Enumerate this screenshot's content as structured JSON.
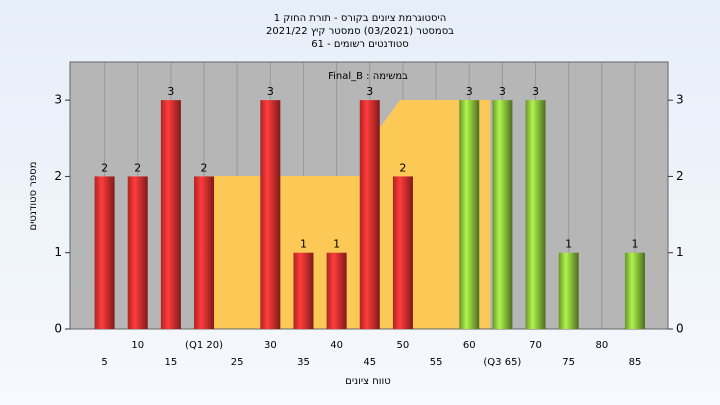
{
  "chart_data": {
    "type": "bar",
    "title": "היסטוגרמת ציונים בקורס - תורת החוק 1",
    "subtitle_lines": [
      "בסמסטר (03/2021) סמסטר קיץ 2021/22",
      "סטודנטים רשומים - 61"
    ],
    "plot_caption": "במשימה : Final_B",
    "x_label": "טווח ציונים",
    "y_label": "מספר סטודנטים",
    "categories": [
      "5",
      "10",
      "15",
      "(Q1 20)",
      "25",
      "30",
      "35",
      "40",
      "45",
      "50",
      "55",
      "60",
      "(Q3 65)",
      "70",
      "75",
      "80",
      "85"
    ],
    "values": [
      2,
      2,
      3,
      2,
      0,
      3,
      1,
      1,
      3,
      2,
      0,
      3,
      3,
      3,
      1,
      0,
      1
    ],
    "colors": [
      "#e83030",
      "#e83030",
      "#e83030",
      "#e83030",
      "#e83030",
      "#e83030",
      "#e83030",
      "#e83030",
      "#e83030",
      "#e83030",
      "#e83030",
      "#8cc43c",
      "#8cc43c",
      "#8cc43c",
      "#8cc43c",
      "#8cc43c",
      "#8cc43c"
    ],
    "ylim": [
      0,
      3.5
    ],
    "yticks": [
      0,
      1,
      2,
      3
    ],
    "y2ticks": [
      0,
      1,
      2,
      3
    ]
  }
}
